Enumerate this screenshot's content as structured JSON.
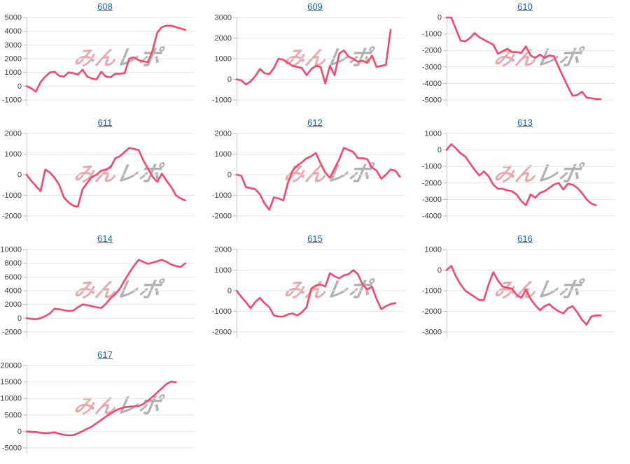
{
  "watermark": {
    "pink_text": "みん",
    "gray_text": "レポ"
  },
  "style": {
    "background": "#ffffff",
    "link_color": "#0b63c9",
    "line_color": "#f4476b",
    "grid_color": "#e4e4e4",
    "axis_color": "#c6c6c6",
    "tick_mark_color": "#bdbdbd",
    "tick_label_color": "#3d3d3d",
    "watermark_pink": "#e6a9ae",
    "watermark_gray": "#b2b2b2"
  },
  "chart_data": [
    {
      "type": "line",
      "title": "608",
      "ylim": [
        -1000,
        5000
      ],
      "ytick_step": 1000,
      "grid": true,
      "values": [
        0,
        -150,
        -400,
        300,
        700,
        1000,
        1050,
        750,
        700,
        1000,
        950,
        850,
        1200,
        700,
        550,
        500,
        1050,
        700,
        650,
        900,
        900,
        950,
        2000,
        2100,
        1900,
        1800,
        1750,
        2600,
        3900,
        4300,
        4400,
        4400,
        4300,
        4200,
        4100
      ]
    },
    {
      "type": "line",
      "title": "609",
      "ylim": [
        -1000,
        3000
      ],
      "ytick_step": 1000,
      "grid": true,
      "values": [
        0,
        -50,
        -250,
        -100,
        150,
        500,
        300,
        250,
        550,
        1000,
        950,
        800,
        650,
        600,
        550,
        200,
        500,
        650,
        600,
        -200,
        650,
        200,
        1250,
        1400,
        1100,
        1000,
        850,
        900,
        800,
        1150,
        600,
        650,
        700,
        2400
      ]
    },
    {
      "type": "line",
      "title": "610",
      "ylim": [
        -5000,
        0
      ],
      "ytick_step": 1000,
      "grid": true,
      "values": [
        0,
        0,
        -700,
        -1400,
        -1450,
        -1250,
        -950,
        -1200,
        -1350,
        -1500,
        -1650,
        -2200,
        -2050,
        -1900,
        -2100,
        -2100,
        -2150,
        -1750,
        -2300,
        -2450,
        -2250,
        -2450,
        -2300,
        -2350,
        -3000,
        -3600,
        -4200,
        -4750,
        -4700,
        -4500,
        -4850,
        -4900,
        -4950,
        -4950
      ]
    },
    {
      "type": "line",
      "title": "611",
      "ylim": [
        -2000,
        2000
      ],
      "ytick_step": 1000,
      "grid": true,
      "values": [
        0,
        -300,
        -550,
        -800,
        250,
        100,
        -150,
        -500,
        -1100,
        -1350,
        -1500,
        -1550,
        -700,
        -400,
        -100,
        0,
        200,
        250,
        350,
        800,
        900,
        1100,
        1300,
        1250,
        1200,
        700,
        300,
        -100,
        -350,
        50,
        -300,
        -600,
        -1000,
        -1150,
        -1250
      ]
    },
    {
      "type": "line",
      "title": "612",
      "ylim": [
        -2000,
        2000
      ],
      "ytick_step": 1000,
      "grid": true,
      "values": [
        0,
        -50,
        -600,
        -650,
        -700,
        -950,
        -1400,
        -1700,
        -1100,
        -1150,
        -1250,
        -400,
        200,
        450,
        600,
        800,
        900,
        1050,
        550,
        100,
        -150,
        300,
        750,
        1300,
        1200,
        1100,
        800,
        800,
        750,
        350,
        200,
        -200,
        0,
        250,
        200,
        -100
      ]
    },
    {
      "type": "line",
      "title": "613",
      "ylim": [
        -4000,
        1000
      ],
      "ytick_step": 1000,
      "grid": true,
      "values": [
        0,
        350,
        100,
        -200,
        -400,
        -800,
        -1200,
        -1550,
        -1300,
        -1600,
        -2100,
        -2350,
        -2350,
        -2450,
        -2500,
        -2700,
        -3100,
        -3350,
        -2700,
        -2900,
        -2600,
        -2500,
        -2300,
        -2100,
        -2000,
        -2400,
        -2050,
        -2100,
        -2300,
        -2600,
        -3000,
        -3250,
        -3350
      ]
    },
    {
      "type": "line",
      "title": "614",
      "ylim": [
        -2000,
        10000
      ],
      "ytick_step": 2000,
      "grid": true,
      "values": [
        0,
        -100,
        -150,
        0,
        300,
        700,
        1400,
        1300,
        1150,
        1050,
        1100,
        1600,
        2000,
        1900,
        1750,
        1600,
        1500,
        2100,
        2900,
        3500,
        4300,
        5500,
        6600,
        7600,
        8500,
        8200,
        7900,
        8100,
        8300,
        8500,
        8200,
        7800,
        7600,
        7450,
        8000
      ]
    },
    {
      "type": "line",
      "title": "615",
      "ylim": [
        -2000,
        2000
      ],
      "ytick_step": 1000,
      "grid": true,
      "values": [
        0,
        -300,
        -550,
        -850,
        -550,
        -350,
        -600,
        -800,
        -1200,
        -1250,
        -1250,
        -1150,
        -1100,
        -1200,
        -1050,
        -800,
        100,
        250,
        300,
        200,
        850,
        700,
        600,
        750,
        800,
        1000,
        800,
        300,
        50,
        200,
        -400,
        -900,
        -750,
        -650,
        -600
      ]
    },
    {
      "type": "line",
      "title": "616",
      "ylim": [
        -3000,
        1000
      ],
      "ytick_step": 1000,
      "grid": true,
      "values": [
        0,
        200,
        -300,
        -700,
        -1000,
        -1150,
        -1300,
        -1450,
        -1450,
        -700,
        -100,
        -500,
        -800,
        -850,
        -900,
        -1200,
        -1350,
        -950,
        -1400,
        -1700,
        -1950,
        -1750,
        -1650,
        -1850,
        -2000,
        -2100,
        -1850,
        -1750,
        -2050,
        -2400,
        -2650,
        -2250,
        -2200,
        -2200
      ]
    },
    {
      "type": "line",
      "title": "617",
      "ylim": [
        -5000,
        20000
      ],
      "ytick_step": 5000,
      "grid": true,
      "values": [
        0,
        -100,
        -200,
        -400,
        -500,
        -450,
        -300,
        -700,
        -1000,
        -1200,
        -1100,
        -600,
        100,
        800,
        1500,
        2500,
        3500,
        4500,
        5400,
        6300,
        6900,
        7300,
        7550,
        7600,
        7700,
        8300,
        9300,
        10500,
        11800,
        13100,
        14400,
        15100,
        14950
      ]
    }
  ]
}
